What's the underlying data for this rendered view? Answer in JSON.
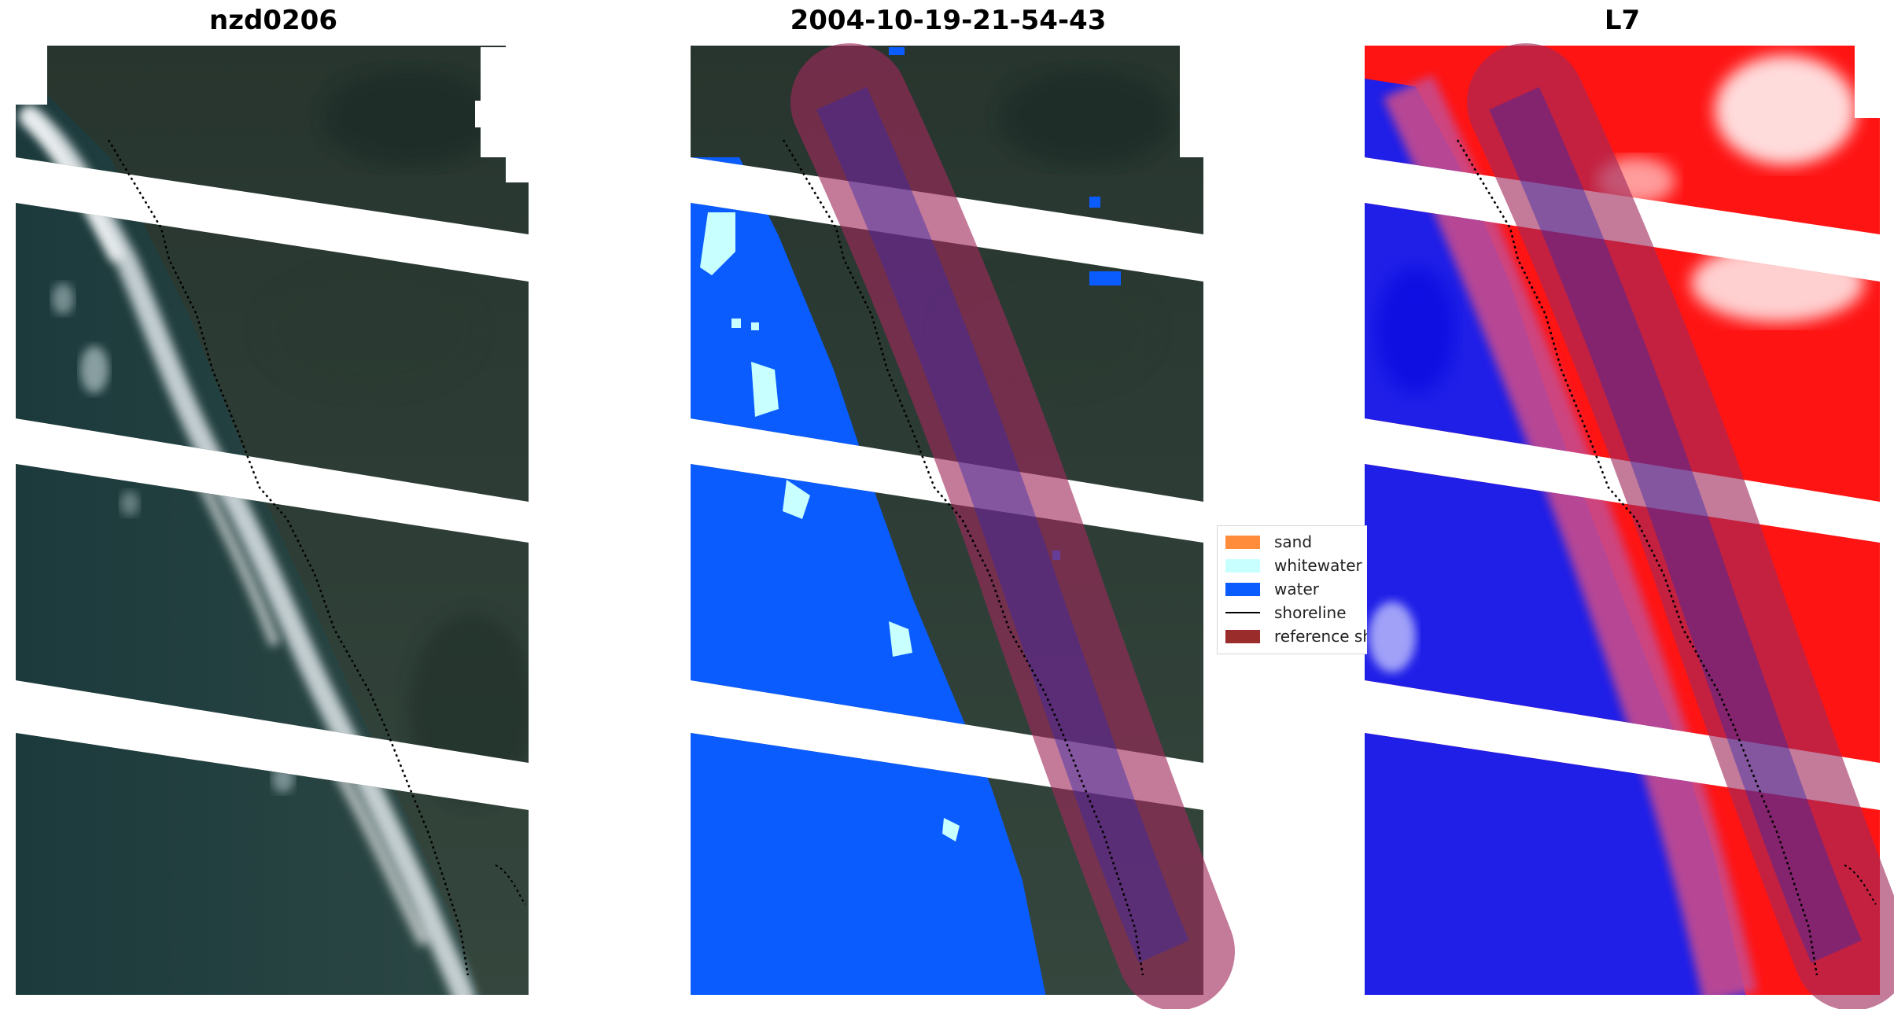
{
  "panels": [
    {
      "title": "nzd0206"
    },
    {
      "title": "2004-10-19-21-54-43"
    },
    {
      "title": "L7"
    }
  ],
  "legend": {
    "items": [
      {
        "label": "sand",
        "color": "#ff8c3a",
        "kind": "patch"
      },
      {
        "label": "whitewater",
        "color": "#c8ffff",
        "kind": "patch"
      },
      {
        "label": "water",
        "color": "#0a5cff",
        "kind": "patch"
      },
      {
        "label": "shoreline",
        "color": "#000000",
        "kind": "line"
      },
      {
        "label": "reference shoreline buffer",
        "color": "#9b2c2c",
        "kind": "patch"
      }
    ]
  },
  "colors": {
    "land": "#2f3f36",
    "ocean": "#23403f",
    "surf": "#dfe6ea",
    "water_class": "#0a5cff",
    "whitewater_class": "#c8ffff",
    "buffer": "#a0285a",
    "index_land": "#ff0b0b",
    "index_water": "#1f1fe8"
  }
}
